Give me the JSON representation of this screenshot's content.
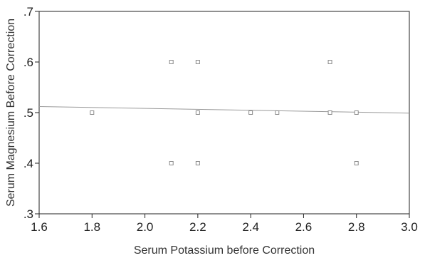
{
  "chart_data": {
    "type": "scatter",
    "xlabel": "Serum Potassium before Correction",
    "ylabel": "Serum Magnesium Before Correction",
    "xlim": [
      1.6,
      3.0
    ],
    "ylim": [
      0.3,
      0.7
    ],
    "x_ticks": [
      "1.6",
      "1.8",
      "2.0",
      "2.2",
      "2.4",
      "2.6",
      "2.8",
      "3.0"
    ],
    "y_ticks": [
      ".3",
      ".4",
      ".5",
      ".6",
      ".7"
    ],
    "grid": false,
    "points": [
      {
        "x": 1.8,
        "y": 0.5
      },
      {
        "x": 2.1,
        "y": 0.6
      },
      {
        "x": 2.1,
        "y": 0.4
      },
      {
        "x": 2.2,
        "y": 0.6
      },
      {
        "x": 2.2,
        "y": 0.5
      },
      {
        "x": 2.2,
        "y": 0.4
      },
      {
        "x": 2.4,
        "y": 0.5
      },
      {
        "x": 2.5,
        "y": 0.5
      },
      {
        "x": 2.7,
        "y": 0.6
      },
      {
        "x": 2.7,
        "y": 0.5
      },
      {
        "x": 2.8,
        "y": 0.5
      },
      {
        "x": 2.8,
        "y": 0.4
      }
    ],
    "fit_line": {
      "x": [
        1.6,
        3.0
      ],
      "y": [
        0.512,
        0.499
      ]
    },
    "colors": {
      "marker": "#8a8a8a",
      "fit_line": "#9a9a9a",
      "axis": "#222222"
    }
  }
}
